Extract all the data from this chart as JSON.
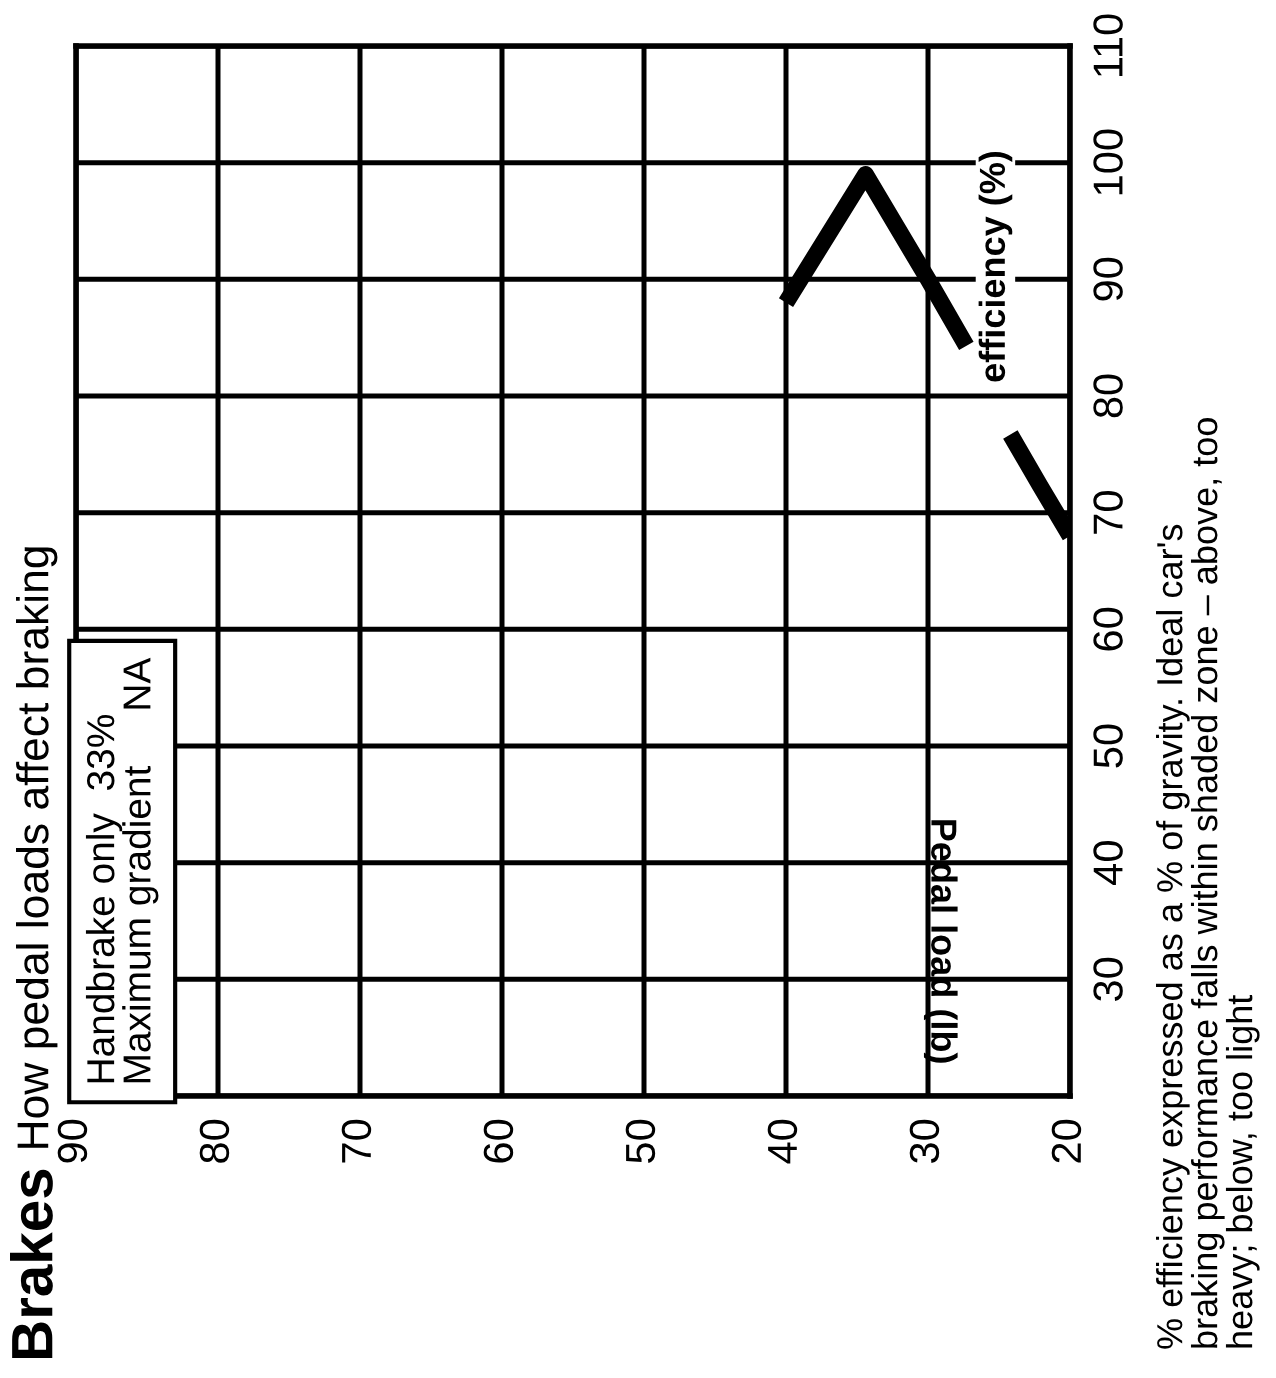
{
  "chart_data": {
    "type": "line",
    "title": "Brakes",
    "subtitle": "How pedal loads affect braking",
    "ylabel": "efficiency (%)",
    "x": [
      40,
      34.4,
      30,
      27.3,
      26,
      24.2,
      22.1,
      20
    ],
    "series": [
      {
        "color": "#000000",
        "values": [
          88,
          99,
          90,
          84.3,
          null,
          76.7,
          72.3,
          68
        ]
      }
    ],
    "xlim": [
      90,
      20
    ],
    "xticks": [
      90,
      80,
      70,
      60,
      50,
      40,
      30,
      20
    ],
    "ylim": [
      20,
      110
    ],
    "yticks": [
      {
        "value": 20,
        "label": null
      },
      30,
      40,
      50,
      60,
      70,
      80,
      90,
      100,
      110
    ],
    "grid": true,
    "marker": "none",
    "line_style": "solid",
    "legend": false,
    "annotations": [
      "Pedal load (lb)",
      "Handbrake only  33%\nMaximum gradient     NA",
      "% efficiency expressed as a % of gravity. Ideal car's\nbraking performance falls within shaded zone – above, too\nheavy; below, too light"
    ]
  }
}
